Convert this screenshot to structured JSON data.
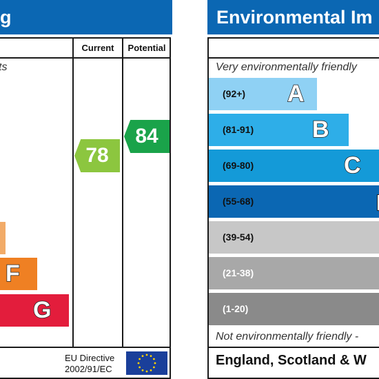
{
  "left_panel": {
    "title": "g",
    "col_current": "Current",
    "col_potential": "Potential",
    "note_top": "ts",
    "bands": [
      {
        "letter": "",
        "color": "#f2ab68"
      },
      {
        "letter": "F",
        "color": "#ef8023"
      },
      {
        "letter": "G",
        "color": "#e31d3c"
      }
    ],
    "current": {
      "value": "78",
      "color": "#8cc63f"
    },
    "potential": {
      "value": "84",
      "color": "#1aa34a"
    },
    "eu_line1": "EU Directive",
    "eu_line2": "2002/91/EC",
    "eu_flag_icon": "eu-flag-icon"
  },
  "right_panel": {
    "title": "Environmental Im",
    "note_top": "Very environmentally friendly",
    "note_bottom": "Not environmentally friendly -",
    "footer": "England, Scotland & W",
    "bands": [
      {
        "range": "(92+)",
        "letter": "A",
        "color": "#8fd1f4",
        "text_color": "#111111"
      },
      {
        "range": "(81-91)",
        "letter": "B",
        "color": "#2eaee8",
        "text_color": "#111111"
      },
      {
        "range": "(69-80)",
        "letter": "C",
        "color": "#149ad8",
        "text_color": "#111111"
      },
      {
        "range": "(55-68)",
        "letter": "",
        "color": "#0b67b3",
        "text_color": "#111111"
      },
      {
        "range": "(39-54)",
        "letter": "",
        "color": "#c7c7c7",
        "text_color": "#111111"
      },
      {
        "range": "(21-38)",
        "letter": "",
        "color": "#a8a8a8",
        "text_color": "#ffffff"
      },
      {
        "range": "(1-20)",
        "letter": "",
        "color": "#8a8a8a",
        "text_color": "#ffffff"
      }
    ]
  }
}
